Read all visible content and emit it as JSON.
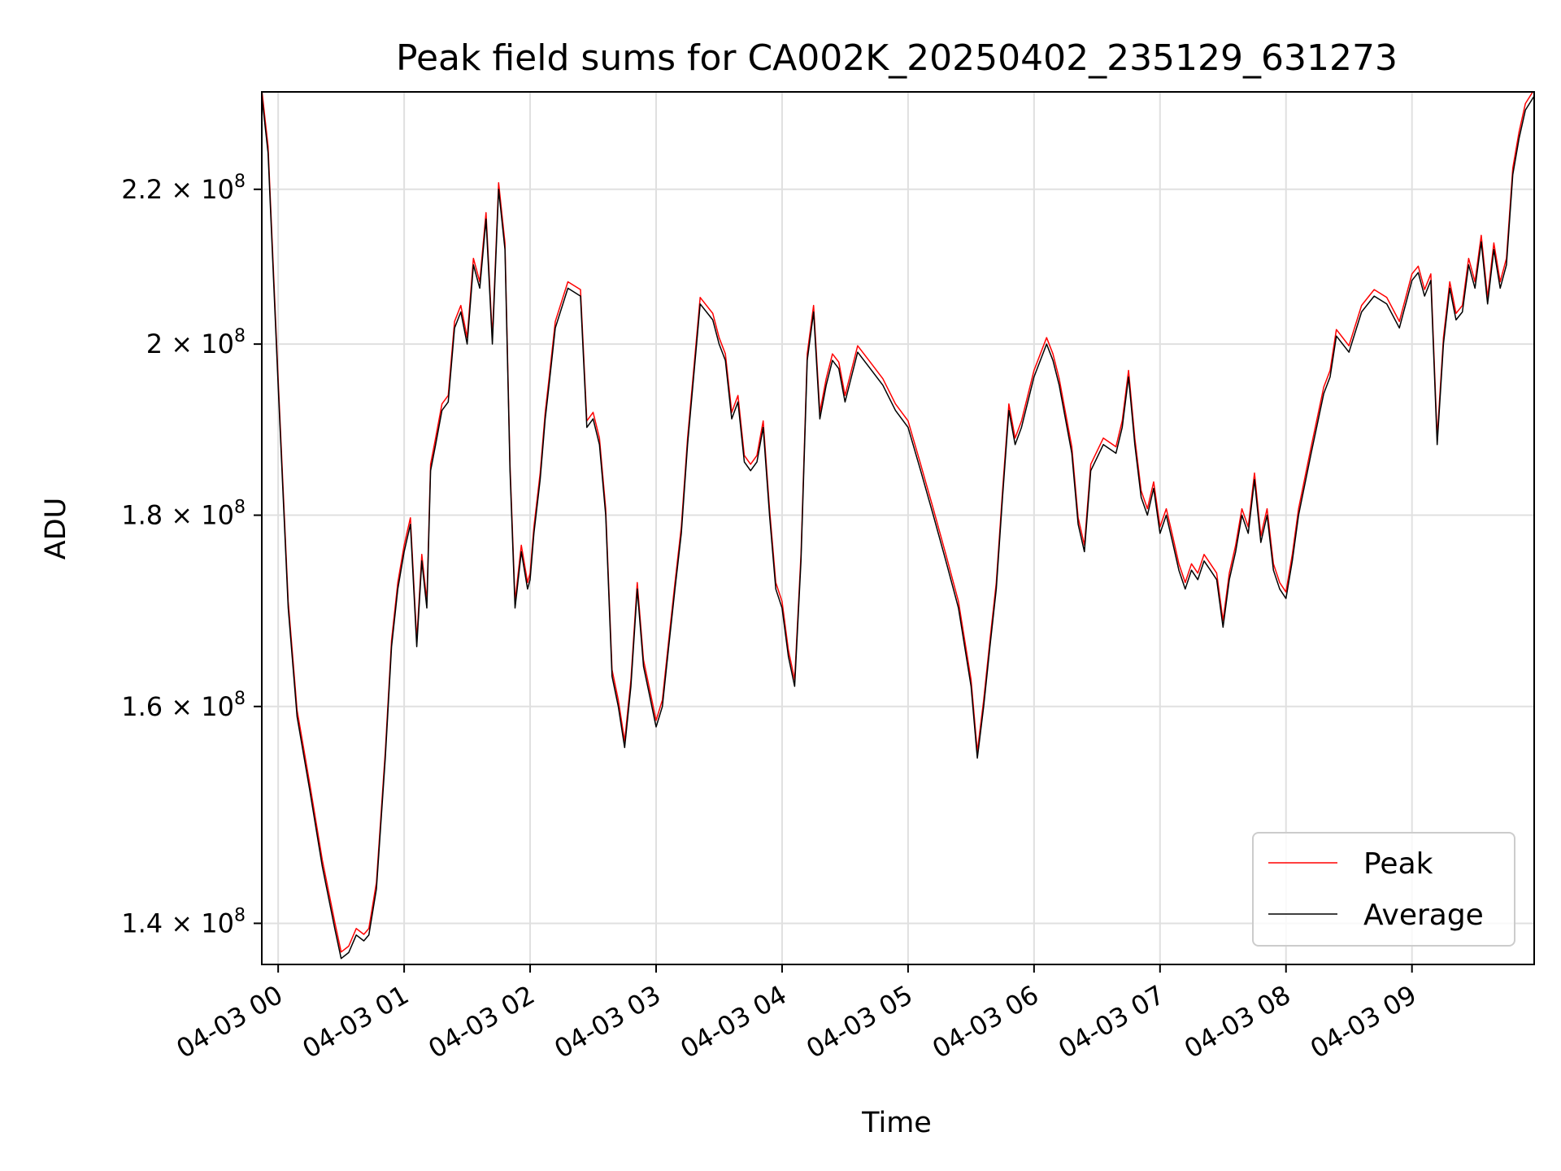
{
  "chart_data": {
    "type": "line",
    "title": "Peak field sums for CA002K_20250402_235129_631273",
    "xlabel": "Time",
    "ylabel": "ADU",
    "x_unit": "hours since 04-03 00:00",
    "xlim": [
      -0.13,
      9.97
    ],
    "ylim": [
      136500000.0,
      233600000.0
    ],
    "y_scale": "log",
    "grid": true,
    "legend_position": "lower-right",
    "x_ticks": [
      {
        "value": 0,
        "label": "04-03 00"
      },
      {
        "value": 1,
        "label": "04-03 01"
      },
      {
        "value": 2,
        "label": "04-03 02"
      },
      {
        "value": 3,
        "label": "04-03 03"
      },
      {
        "value": 4,
        "label": "04-03 04"
      },
      {
        "value": 5,
        "label": "04-03 05"
      },
      {
        "value": 6,
        "label": "04-03 06"
      },
      {
        "value": 7,
        "label": "04-03 07"
      },
      {
        "value": 8,
        "label": "04-03 08"
      },
      {
        "value": 9,
        "label": "04-03 09"
      }
    ],
    "y_ticks": [
      {
        "value": 140000000.0,
        "mant": "1.4"
      },
      {
        "value": 160000000.0,
        "mant": "1.6"
      },
      {
        "value": 180000000.0,
        "mant": "1.8"
      },
      {
        "value": 200000000.0,
        "mant": "2"
      },
      {
        "value": 220000000.0,
        "mant": "2.2"
      }
    ],
    "y_tick_times": "×",
    "y_tick_base": "10",
    "y_tick_exp": "8",
    "series": [
      {
        "name": "Peak",
        "color": "#ff0000",
        "width": 1.5
      },
      {
        "name": "Average",
        "color": "#000000",
        "width": 1.5
      }
    ],
    "x": [
      -0.13,
      -0.08,
      0.0,
      0.08,
      0.15,
      0.25,
      0.35,
      0.45,
      0.5,
      0.56,
      0.62,
      0.68,
      0.72,
      0.78,
      0.85,
      0.9,
      0.95,
      1.0,
      1.05,
      1.1,
      1.14,
      1.18,
      1.21,
      1.25,
      1.3,
      1.35,
      1.4,
      1.45,
      1.5,
      1.55,
      1.6,
      1.65,
      1.7,
      1.75,
      1.8,
      1.84,
      1.88,
      1.93,
      1.98,
      2.0,
      2.03,
      2.08,
      2.12,
      2.15,
      2.2,
      2.3,
      2.4,
      2.45,
      2.5,
      2.55,
      2.6,
      2.65,
      2.7,
      2.75,
      2.8,
      2.85,
      2.9,
      2.95,
      3.0,
      3.05,
      3.1,
      3.15,
      3.2,
      3.25,
      3.35,
      3.45,
      3.5,
      3.55,
      3.6,
      3.65,
      3.7,
      3.75,
      3.8,
      3.85,
      3.9,
      3.95,
      4.0,
      4.05,
      4.1,
      4.15,
      4.2,
      4.25,
      4.3,
      4.35,
      4.4,
      4.45,
      4.5,
      4.55,
      4.6,
      4.7,
      4.8,
      4.9,
      5.0,
      5.1,
      5.2,
      5.3,
      5.4,
      5.5,
      5.55,
      5.6,
      5.65,
      5.7,
      5.75,
      5.8,
      5.85,
      5.9,
      6.0,
      6.1,
      6.15,
      6.2,
      6.3,
      6.35,
      6.4,
      6.45,
      6.55,
      6.65,
      6.7,
      6.75,
      6.8,
      6.85,
      6.9,
      6.95,
      7.0,
      7.05,
      7.1,
      7.15,
      7.2,
      7.25,
      7.3,
      7.35,
      7.4,
      7.45,
      7.5,
      7.55,
      7.6,
      7.65,
      7.7,
      7.75,
      7.8,
      7.85,
      7.9,
      7.95,
      8.0,
      8.05,
      8.1,
      8.2,
      8.3,
      8.35,
      8.4,
      8.5,
      8.6,
      8.7,
      8.8,
      8.9,
      9.0,
      9.05,
      9.1,
      9.15,
      9.2,
      9.25,
      9.3,
      9.35,
      9.4,
      9.45,
      9.5,
      9.55,
      9.6,
      9.65,
      9.7,
      9.75,
      9.8,
      9.85,
      9.9,
      9.97
    ],
    "values": [
      233000000.0,
      225000000.0,
      195000000.0,
      170000000.0,
      159000000.0,
      152000000.0,
      145000000.0,
      139500000.0,
      137000000.0,
      137500000.0,
      139000000.0,
      138500000.0,
      139000000.0,
      143000000.0,
      155000000.0,
      166000000.0,
      172000000.0,
      176000000.0,
      179000000.0,
      166000000.0,
      175000000.0,
      170000000.0,
      185000000.0,
      188000000.0,
      192000000.0,
      193000000.0,
      202000000.0,
      204000000.0,
      200000000.0,
      210000000.0,
      207000000.0,
      216000000.0,
      200000000.0,
      220000000.0,
      212000000.0,
      185000000.0,
      170000000.0,
      176000000.0,
      172000000.0,
      173000000.0,
      178000000.0,
      184000000.0,
      191000000.0,
      195000000.0,
      202000000.0,
      207000000.0,
      206000000.0,
      190000000.0,
      191000000.0,
      188000000.0,
      180000000.0,
      163000000.0,
      160000000.0,
      156000000.0,
      162000000.0,
      172000000.0,
      164000000.0,
      161000000.0,
      158000000.0,
      160000000.0,
      166000000.0,
      172000000.0,
      178000000.0,
      188000000.0,
      205000000.0,
      203000000.0,
      200000000.0,
      198000000.0,
      191000000.0,
      193000000.0,
      186000000.0,
      185000000.0,
      186000000.0,
      190000000.0,
      180000000.0,
      172000000.0,
      170000000.0,
      165000000.0,
      162000000.0,
      175000000.0,
      198000000.0,
      204000000.0,
      191000000.0,
      195000000.0,
      198000000.0,
      197000000.0,
      193000000.0,
      196000000.0,
      199000000.0,
      197000000.0,
      195000000.0,
      192000000.0,
      190000000.0,
      185000000.0,
      180000000.0,
      175000000.0,
      170000000.0,
      162000000.0,
      155000000.0,
      160000000.0,
      166000000.0,
      172000000.0,
      182000000.0,
      192000000.0,
      188000000.0,
      190000000.0,
      196000000.0,
      200000000.0,
      198000000.0,
      195000000.0,
      187000000.0,
      179000000.0,
      176000000.0,
      185000000.0,
      188000000.0,
      187000000.0,
      190000000.0,
      196000000.0,
      188000000.0,
      182000000.0,
      180000000.0,
      183000000.0,
      178000000.0,
      180000000.0,
      177000000.0,
      174000000.0,
      172000000.0,
      174000000.0,
      173000000.0,
      175000000.0,
      174000000.0,
      173000000.0,
      168000000.0,
      173000000.0,
      176000000.0,
      180000000.0,
      178000000.0,
      184000000.0,
      177000000.0,
      180000000.0,
      174000000.0,
      172000000.0,
      171000000.0,
      175000000.0,
      180000000.0,
      187000000.0,
      194000000.0,
      196000000.0,
      201000000.0,
      199000000.0,
      204000000.0,
      206000000.0,
      205000000.0,
      202000000.0,
      208000000.0,
      209000000.0,
      206000000.0,
      208000000.0,
      188000000.0,
      200000000.0,
      207000000.0,
      203000000.0,
      204000000.0,
      210000000.0,
      207000000.0,
      213000000.0,
      205000000.0,
      212000000.0,
      207000000.0,
      210000000.0,
      222000000.0,
      227000000.0,
      231000000.0,
      233000000.0
    ]
  }
}
